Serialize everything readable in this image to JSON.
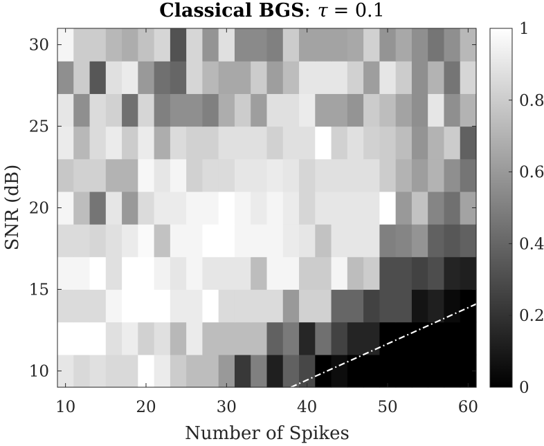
{
  "chart_data": {
    "type": "heatmap",
    "title": {
      "bold": "Classical BGS",
      "colon": ":",
      "math_symbol": "τ",
      "equals_value": "= 0.1"
    },
    "xlabel": "Number of Spikes",
    "ylabel": "SNR (dB)",
    "xlim": [
      9,
      61
    ],
    "ylim": [
      9,
      31
    ],
    "xticks": [
      10,
      20,
      30,
      40,
      50,
      60
    ],
    "yticks": [
      10,
      15,
      20,
      25,
      30
    ],
    "x": [
      10,
      12,
      14,
      16,
      18,
      20,
      22,
      24,
      26,
      28,
      30,
      32,
      34,
      36,
      38,
      40,
      42,
      44,
      46,
      48,
      50,
      52,
      54,
      56,
      58,
      60
    ],
    "y": [
      10,
      12,
      14,
      16,
      18,
      20,
      22,
      24,
      26,
      28,
      30
    ],
    "values": [
      [
        0.9,
        0.85,
        0.88,
        0.85,
        0.85,
        1.0,
        0.92,
        0.8,
        0.74,
        0.74,
        0.6,
        0.22,
        0.5,
        0.12,
        0.38,
        0.28,
        0.0,
        0.05,
        0.0,
        0.0,
        0.0,
        0.0,
        0.0,
        0.0,
        0.0,
        0.0
      ],
      [
        1.0,
        1.0,
        1.0,
        0.88,
        0.93,
        0.82,
        0.88,
        0.72,
        0.92,
        0.74,
        0.74,
        0.74,
        0.74,
        0.38,
        0.48,
        0.15,
        0.44,
        0.26,
        0.14,
        0.14,
        0.0,
        0.0,
        0.0,
        0.0,
        0.0,
        0.0
      ],
      [
        0.86,
        0.86,
        0.86,
        0.96,
        1.0,
        1.0,
        1.0,
        0.92,
        0.92,
        1.0,
        0.86,
        0.86,
        0.86,
        0.86,
        0.6,
        0.82,
        0.82,
        0.4,
        0.4,
        0.26,
        0.3,
        0.3,
        0.08,
        0.12,
        0.04,
        0.0
      ],
      [
        0.96,
        0.96,
        1.0,
        0.88,
        1.0,
        1.0,
        0.95,
        0.9,
        0.96,
        0.9,
        0.9,
        0.9,
        0.74,
        0.96,
        0.96,
        0.8,
        0.8,
        0.96,
        0.74,
        0.8,
        0.3,
        0.3,
        0.26,
        0.3,
        0.14,
        0.12
      ],
      [
        0.86,
        0.86,
        0.84,
        0.88,
        0.92,
        0.98,
        0.76,
        0.96,
        0.96,
        1.0,
        1.0,
        0.96,
        0.96,
        0.96,
        0.92,
        0.9,
        0.76,
        0.9,
        0.9,
        0.9,
        0.5,
        0.52,
        0.58,
        0.38,
        0.34,
        0.38
      ],
      [
        0.96,
        0.74,
        0.46,
        0.9,
        0.6,
        0.86,
        0.92,
        0.92,
        0.96,
        0.96,
        1.0,
        0.96,
        0.92,
        0.96,
        0.92,
        0.84,
        0.9,
        0.9,
        0.9,
        0.9,
        1.0,
        0.6,
        0.76,
        0.52,
        0.44,
        0.64
      ],
      [
        0.78,
        0.82,
        0.82,
        0.7,
        0.7,
        0.97,
        0.9,
        0.96,
        0.82,
        0.86,
        0.86,
        0.9,
        0.9,
        0.92,
        0.9,
        0.84,
        0.88,
        0.88,
        0.88,
        0.88,
        0.8,
        0.7,
        0.62,
        0.7,
        0.56,
        0.46
      ],
      [
        0.92,
        0.72,
        0.86,
        0.92,
        0.8,
        0.92,
        0.68,
        0.86,
        0.82,
        0.82,
        0.88,
        0.88,
        0.88,
        0.82,
        0.88,
        0.88,
        1.0,
        0.82,
        0.88,
        0.82,
        0.8,
        0.74,
        0.58,
        0.7,
        0.8,
        0.38
      ],
      [
        0.9,
        0.56,
        0.86,
        0.82,
        0.44,
        0.84,
        0.5,
        0.56,
        0.56,
        0.5,
        0.68,
        0.8,
        0.62,
        0.88,
        0.88,
        0.92,
        0.64,
        0.64,
        0.58,
        0.8,
        0.74,
        0.64,
        0.56,
        0.9,
        0.56,
        0.7
      ],
      [
        0.56,
        0.8,
        0.34,
        0.88,
        0.92,
        0.6,
        0.44,
        0.4,
        0.84,
        0.72,
        0.66,
        0.66,
        0.8,
        0.62,
        0.74,
        0.9,
        0.9,
        0.9,
        0.82,
        0.62,
        0.9,
        0.8,
        0.56,
        0.7,
        0.46,
        0.84
      ],
      [
        0.96,
        0.8,
        0.8,
        0.72,
        0.68,
        0.76,
        0.84,
        0.32,
        0.84,
        0.58,
        0.88,
        0.54,
        0.54,
        0.5,
        0.8,
        0.64,
        0.64,
        0.64,
        0.66,
        0.82,
        0.58,
        0.66,
        0.56,
        0.46,
        0.56,
        0.72
      ]
    ],
    "colorbar": {
      "colormap": "gray",
      "range": [
        0,
        1
      ],
      "ticks": [
        0,
        0.2,
        0.4,
        0.6,
        0.8,
        1
      ],
      "tick_labels": [
        "0",
        "0.2",
        "0.4",
        "0.6",
        "0.8",
        "1"
      ]
    },
    "boundary_line": {
      "style": "dash-dot",
      "color": "#ffffff",
      "x": [
        38,
        61
      ],
      "y": [
        9,
        14.1
      ]
    },
    "colors": {
      "axis": "#262626",
      "background": "#ffffff"
    }
  }
}
